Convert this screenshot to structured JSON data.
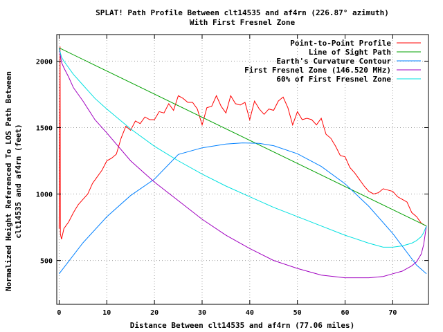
{
  "chart_data": {
    "type": "line",
    "title": "SPLAT! Path Profile Between clt14535 and af4rn (226.87° azimuth)",
    "subtitle": "With First Fresnel Zone",
    "xlabel": "Distance Between clt14535 and af4rn (77.06 miles)",
    "ylabel": "Normalized Height Referenced To LOS Path Between clt14535 and af4rn (feet)",
    "xlim": [
      -0.5,
      77.5
    ],
    "ylim": [
      170,
      2200
    ],
    "x_ticks": [
      0,
      10,
      20,
      30,
      40,
      50,
      60,
      70
    ],
    "y_ticks": [
      500,
      1000,
      1500,
      2000
    ],
    "grid": true,
    "legend_position": "top-right",
    "series": [
      {
        "name": "Point-to-Point Profile",
        "color": "#ff0000",
        "x": [
          0,
          0.2,
          0.25,
          0.5,
          1,
          2,
          3,
          4,
          5,
          6,
          7,
          8,
          9,
          10,
          11,
          12,
          13,
          14,
          15,
          16,
          17,
          18,
          19,
          20,
          21,
          22,
          23,
          24,
          25,
          26,
          27,
          28,
          29,
          30,
          31,
          32,
          33,
          34,
          35,
          36,
          37,
          38,
          39,
          40,
          41,
          42,
          43,
          44,
          45,
          46,
          47,
          48,
          49,
          50,
          51,
          52,
          53,
          54,
          55,
          56,
          57,
          58,
          59,
          60,
          61,
          62,
          63,
          64,
          65,
          66,
          67,
          68,
          69,
          70,
          71,
          72,
          73,
          74,
          75,
          76,
          77
        ],
        "y": [
          740,
          2110,
          700,
          660,
          740,
          790,
          860,
          920,
          960,
          1000,
          1080,
          1130,
          1180,
          1250,
          1270,
          1300,
          1420,
          1510,
          1480,
          1550,
          1530,
          1580,
          1560,
          1560,
          1620,
          1610,
          1680,
          1630,
          1740,
          1720,
          1690,
          1690,
          1640,
          1520,
          1650,
          1660,
          1740,
          1660,
          1610,
          1740,
          1680,
          1670,
          1690,
          1560,
          1700,
          1640,
          1600,
          1640,
          1630,
          1700,
          1730,
          1650,
          1520,
          1620,
          1560,
          1570,
          1560,
          1520,
          1570,
          1450,
          1420,
          1360,
          1290,
          1280,
          1200,
          1160,
          1110,
          1060,
          1020,
          1000,
          1010,
          1040,
          1030,
          1020,
          980,
          960,
          940,
          860,
          830,
          780,
          760
        ]
      },
      {
        "name": "Line of Sight Path",
        "color": "#00a000",
        "x": [
          0,
          77.06
        ],
        "y": [
          2100,
          760
        ]
      },
      {
        "name": "Earth's Curvature Contour",
        "color": "#0080ff",
        "x": [
          0,
          5,
          10,
          15,
          20,
          25,
          30,
          35,
          38.5,
          42,
          45,
          50,
          55,
          60,
          65,
          70,
          75,
          77.06
        ],
        "y": [
          400,
          633,
          829,
          989,
          1112,
          1298,
          1348,
          1376,
          1385,
          1381,
          1364,
          1303,
          1208,
          1077,
          907,
          703,
          465,
          400
        ]
      },
      {
        "name": "First Fresnel Zone (146.520 MHz)",
        "color": "#a000c0",
        "x": [
          0,
          0.5,
          1,
          2,
          3,
          5,
          7.5,
          10,
          15,
          20,
          25,
          30,
          35,
          40,
          45,
          50,
          55,
          60,
          65,
          68,
          70,
          72,
          74,
          75,
          76,
          76.5,
          77.06
        ],
        "y": [
          2100,
          1990,
          1950,
          1880,
          1800,
          1700,
          1560,
          1460,
          1250,
          1090,
          950,
          810,
          690,
          590,
          500,
          440,
          390,
          370,
          370,
          380,
          400,
          420,
          460,
          490,
          550,
          620,
          760
        ]
      },
      {
        "name": "60% of First Fresnel Zone",
        "color": "#00e0e0",
        "x": [
          0,
          0.5,
          1,
          2,
          3,
          5,
          7.5,
          10,
          15,
          20,
          25,
          30,
          35,
          40,
          45,
          50,
          55,
          60,
          65,
          68,
          70,
          72,
          74,
          75,
          76,
          76.5,
          77.06
        ],
        "y": [
          2100,
          2030,
          2000,
          1950,
          1900,
          1820,
          1720,
          1640,
          1490,
          1360,
          1250,
          1150,
          1060,
          980,
          900,
          830,
          760,
          690,
          630,
          600,
          600,
          610,
          630,
          650,
          680,
          710,
          760
        ]
      }
    ]
  }
}
